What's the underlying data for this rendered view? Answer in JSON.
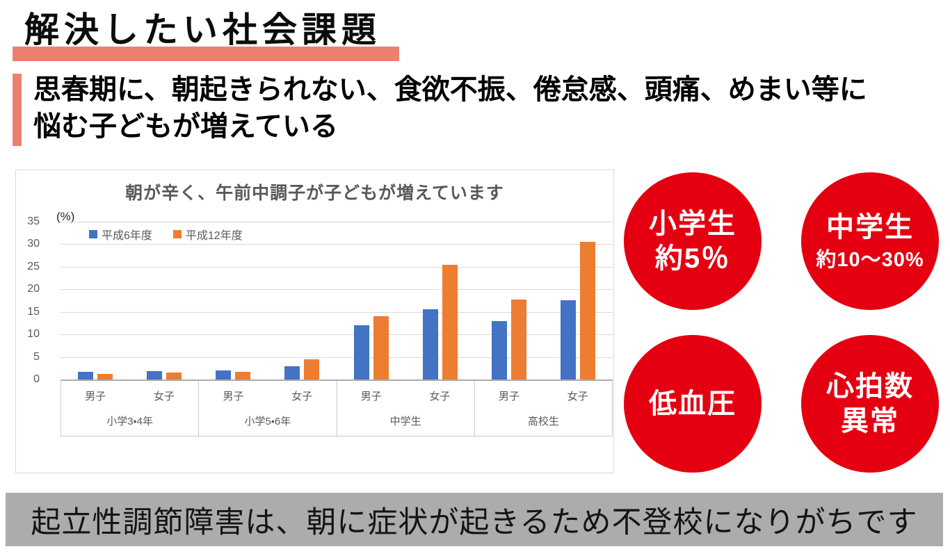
{
  "header": {
    "title": "解決したい社会課題",
    "lead_line1": "思春期に、朝起きられない、食欲不振、倦怠感、頭痛、めまい等に",
    "lead_line2": "悩む子どもが増えている"
  },
  "chart_data": {
    "type": "bar",
    "title": "朝が辛く、午前中調子が子どもが増えています",
    "unit_label": "(%)",
    "ylim": [
      0,
      35
    ],
    "ytick_step": 5,
    "grid": true,
    "legend_position": "top-left-inside",
    "series": [
      {
        "name": "平成6年度",
        "color": "#4472C4"
      },
      {
        "name": "平成12年度",
        "color": "#ED7D31"
      }
    ],
    "groups": [
      {
        "label": "小学3・4年",
        "categories": [
          {
            "label": "男子",
            "values": [
              1.7,
              1.2
            ]
          },
          {
            "label": "女子",
            "values": [
              1.9,
              1.5
            ]
          }
        ]
      },
      {
        "label": "小学5・6年",
        "categories": [
          {
            "label": "男子",
            "values": [
              2.0,
              1.7
            ]
          },
          {
            "label": "女子",
            "values": [
              3.0,
              4.5
            ]
          }
        ]
      },
      {
        "label": "中学生",
        "categories": [
          {
            "label": "男子",
            "values": [
              12.0,
              14.0
            ]
          },
          {
            "label": "女子",
            "values": [
              15.5,
              25.5
            ]
          }
        ]
      },
      {
        "label": "高校生",
        "categories": [
          {
            "label": "男子",
            "values": [
              13.0,
              17.8
            ]
          },
          {
            "label": "女子",
            "values": [
              17.6,
              30.5
            ]
          }
        ]
      }
    ]
  },
  "badges": [
    {
      "line1": "小学生",
      "line2": "約5％"
    },
    {
      "line1": "中学生",
      "line2": "約10～30%"
    },
    {
      "line1": "低血圧"
    },
    {
      "line1": "心拍数",
      "line2": "異常"
    }
  ],
  "footer": {
    "text": "起立性調節障害は、朝に症状が起きるため不登校になりがちです"
  },
  "colors": {
    "accent_salmon": "#EC8070",
    "badge_red": "#E50011",
    "series_blue": "#4472C4",
    "series_orange": "#ED7D31",
    "banner_gray": "#ACACAC",
    "axis_text_gray": "#595959"
  }
}
